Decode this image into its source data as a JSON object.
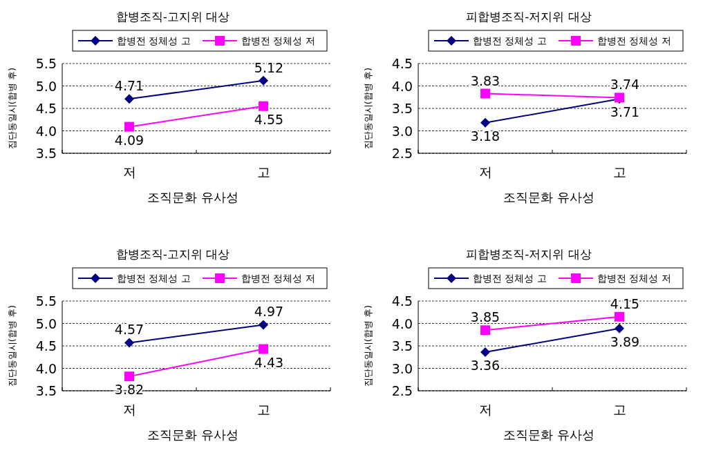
{
  "chart_data": [
    {
      "type": "line",
      "title": "합병조직-고지위 대상",
      "xlabel": "조직문화 유사성",
      "ylabel": "집단동일시(합병 후)",
      "categories": [
        "저",
        "고"
      ],
      "ylim": [
        3.5,
        5.5
      ],
      "yticks": [
        3.5,
        {
          "value": 4,
          "label": "4.0"
        },
        4.5,
        {
          "value": 5,
          "label": "5.0"
        },
        5.5
      ],
      "grid": "y",
      "legend": "top",
      "data_labels": true,
      "series": [
        {
          "name": "합병전 정체성 고",
          "color": "#000080",
          "marker": "diamond",
          "values": [
            4.71,
            5.12
          ]
        },
        {
          "name": "합병전 정체성 저",
          "color": "#ff00ff",
          "marker": "square",
          "values": [
            4.09,
            4.55
          ]
        }
      ]
    },
    {
      "type": "line",
      "title": "피합병조직-저지위 대상",
      "xlabel": "조직문화 유사성",
      "ylabel": "집단동일시(합병 후)",
      "categories": [
        "저",
        "고"
      ],
      "ylim": [
        2.5,
        4.5
      ],
      "yticks": [
        2.5,
        {
          "value": 3,
          "label": "3.0"
        },
        3.5,
        {
          "value": 4,
          "label": "4.0"
        },
        4.5
      ],
      "grid": "y",
      "legend": "top",
      "data_labels": true,
      "series": [
        {
          "name": "합병전 정체성 고",
          "color": "#000080",
          "marker": "diamond",
          "values": [
            3.18,
            3.71
          ]
        },
        {
          "name": "합병전 정체성 저",
          "color": "#ff00ff",
          "marker": "square",
          "values": [
            3.83,
            3.74
          ]
        }
      ]
    },
    {
      "type": "line",
      "title": "합병조직-고지위 대상",
      "xlabel": "조직문화 유사성",
      "ylabel": "집단동일시(합병 후)",
      "categories": [
        "저",
        "고"
      ],
      "ylim": [
        3.5,
        5.5
      ],
      "yticks": [
        3.5,
        {
          "value": 4,
          "label": "4.0"
        },
        4.5,
        {
          "value": 5,
          "label": "5.0"
        },
        5.5
      ],
      "grid": "y",
      "legend": "top",
      "data_labels": true,
      "series": [
        {
          "name": "합병전 정체성 고",
          "color": "#000080",
          "marker": "diamond",
          "values": [
            4.57,
            4.97
          ]
        },
        {
          "name": "합병전 정체성 저",
          "color": "#ff00ff",
          "marker": "square",
          "values": [
            3.82,
            4.43
          ]
        }
      ]
    },
    {
      "type": "line",
      "title": "피합병조직-저지위 대상",
      "xlabel": "조직문화 유사성",
      "ylabel": "집단동일시(합병 후)",
      "categories": [
        "저",
        "고"
      ],
      "ylim": [
        2.5,
        4.5
      ],
      "yticks": [
        2.5,
        {
          "value": 3,
          "label": "3.0"
        },
        3.5,
        {
          "value": 4,
          "label": "4.0"
        },
        4.5
      ],
      "grid": "y",
      "legend": "top",
      "data_labels": true,
      "series": [
        {
          "name": "합병전 정체성 고",
          "color": "#000080",
          "marker": "diamond",
          "values": [
            3.36,
            3.89
          ]
        },
        {
          "name": "합병전 정체성 저",
          "color": "#ff00ff",
          "marker": "square",
          "values": [
            3.85,
            4.15
          ]
        }
      ]
    }
  ]
}
